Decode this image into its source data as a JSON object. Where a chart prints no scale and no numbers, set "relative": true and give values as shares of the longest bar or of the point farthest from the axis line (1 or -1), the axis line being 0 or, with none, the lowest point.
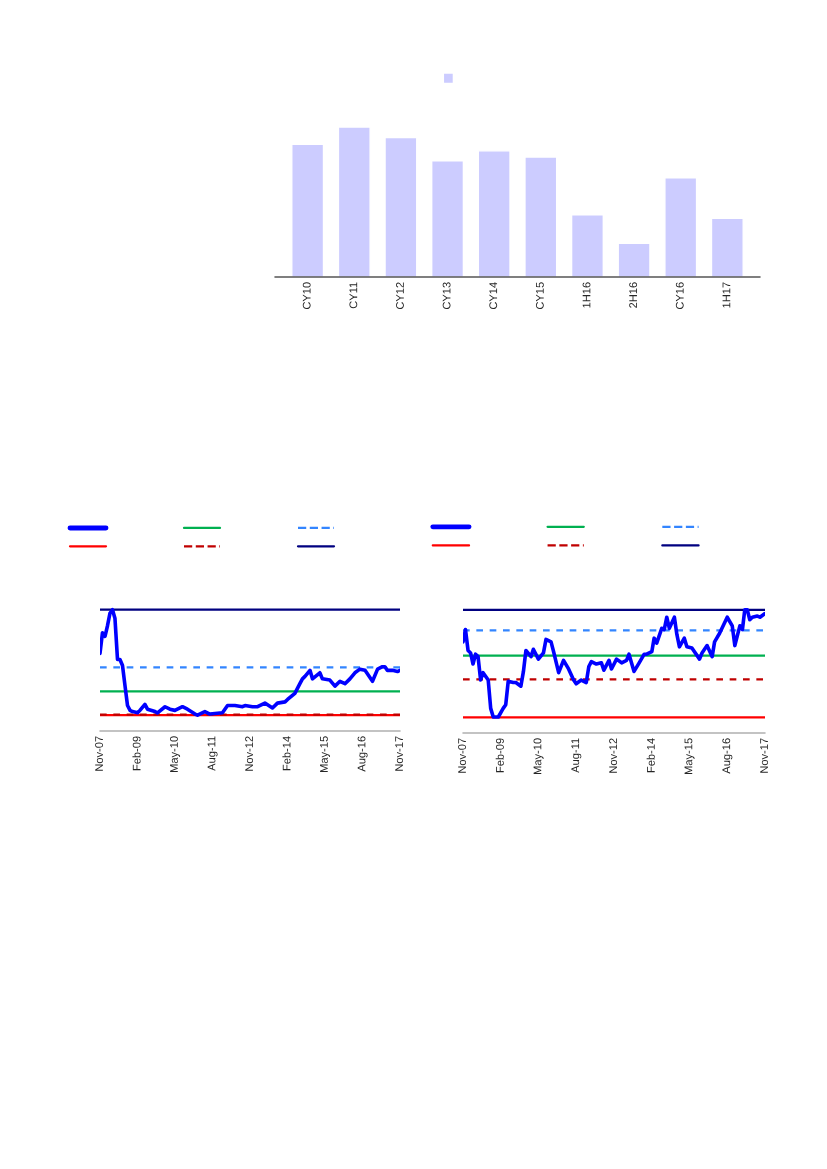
{
  "chart_data": [
    {
      "type": "bar",
      "relative": true,
      "categories": [
        "CY10",
        "CY11",
        "CY12",
        "CY13",
        "CY14",
        "CY15",
        "1H16",
        "2H16",
        "CY16",
        "1H17"
      ],
      "series": [
        {
          "color": "#ccccff",
          "values": [
            0.885,
            1,
            0.929,
            0.774,
            0.841,
            0.8,
            0.415,
            0.224,
            0.662,
            0.391
          ]
        }
      ]
    },
    {
      "type": "line",
      "relative": true,
      "xlim": [
        "2007-11",
        "2017-11"
      ],
      "xticks": [
        {
          "value": "2007-11",
          "label": "Nov-07"
        },
        {
          "value": "2009-02",
          "label": "Feb-09"
        },
        {
          "value": "2010-05",
          "label": "May-10"
        },
        {
          "value": "2011-08",
          "label": "Aug-11"
        },
        {
          "value": "2012-11",
          "label": "Nov-12"
        },
        {
          "value": "2014-02",
          "label": "Feb-14"
        },
        {
          "value": "2015-05",
          "label": "May-15"
        },
        {
          "value": "2016-08",
          "label": "Aug-16"
        },
        {
          "value": "2017-11",
          "label": "Nov-17"
        }
      ],
      "series": [
        {
          "color": "#0000ff",
          "x": [
            "2007-11",
            "2007-12",
            "2008-01",
            "2008-02",
            "2008-03",
            "2008-04",
            "2008-05",
            "2008-06",
            "2008-07",
            "2008-08",
            "2008-09",
            "2008-10",
            "2008-11",
            "2008-12",
            "2009-02",
            "2009-03",
            "2009-05",
            "2009-06",
            "2009-09",
            "2009-10",
            "2010-01",
            "2010-03",
            "2010-05",
            "2010-08",
            "2010-10",
            "2011-01",
            "2011-02",
            "2011-05",
            "2011-07",
            "2011-12",
            "2012-02",
            "2012-05",
            "2012-08",
            "2012-09",
            "2012-12",
            "2013-02",
            "2013-05",
            "2013-08",
            "2013-10",
            "2014-01",
            "2014-02",
            "2014-05",
            "2014-07",
            "2014-08",
            "2014-09",
            "2014-11",
            "2014-12",
            "2015-03",
            "2015-04",
            "2015-07",
            "2015-09",
            "2015-11",
            "2016-01",
            "2016-03",
            "2016-05",
            "2016-07",
            "2016-09",
            "2016-12",
            "2017-02",
            "2017-04",
            "2017-05",
            "2017-06",
            "2017-08",
            "2017-10",
            "2017-11"
          ],
          "values": [
            0.64,
            0.81,
            0.78,
            0.87,
            0.97,
            1.0,
            0.93,
            0.59,
            0.59,
            0.54,
            0.37,
            0.21,
            0.17,
            0.16,
            0.15,
            0.17,
            0.22,
            0.18,
            0.16,
            0.15,
            0.2,
            0.18,
            0.17,
            0.2,
            0.18,
            0.14,
            0.13,
            0.16,
            0.14,
            0.15,
            0.21,
            0.21,
            0.2,
            0.21,
            0.2,
            0.2,
            0.23,
            0.19,
            0.23,
            0.24,
            0.26,
            0.31,
            0.39,
            0.43,
            0.45,
            0.5,
            0.43,
            0.48,
            0.43,
            0.42,
            0.37,
            0.41,
            0.39,
            0.43,
            0.48,
            0.51,
            0.5,
            0.41,
            0.51,
            0.53,
            0.53,
            0.5,
            0.5,
            0.49,
            0.5
          ]
        }
      ],
      "ref_lines": [
        {
          "axis": "y",
          "value": 0.13,
          "color": "#ff0000",
          "line_style": "solid"
        },
        {
          "axis": "y",
          "value": 0.327,
          "color": "#00b050",
          "line_style": "solid"
        },
        {
          "axis": "y",
          "value": 0.525,
          "color": "#3385ff",
          "line_style": "dashed"
        },
        {
          "axis": "y",
          "value": 1.0,
          "color": "#000080",
          "line_style": "solid"
        },
        {
          "axis": "y",
          "value": 0.135,
          "color": "#c00000",
          "line_style": "dashed"
        }
      ]
    },
    {
      "type": "line",
      "relative": true,
      "xlim": [
        "2007-11",
        "2017-11"
      ],
      "xticks": [
        {
          "value": "2007-11",
          "label": "Nov-07"
        },
        {
          "value": "2009-02",
          "label": "Feb-09"
        },
        {
          "value": "2010-05",
          "label": "May-10"
        },
        {
          "value": "2011-08",
          "label": "Aug-11"
        },
        {
          "value": "2012-11",
          "label": "Nov-12"
        },
        {
          "value": "2014-02",
          "label": "Feb-14"
        },
        {
          "value": "2015-05",
          "label": "May-15"
        },
        {
          "value": "2016-08",
          "label": "Aug-16"
        },
        {
          "value": "2017-11",
          "label": "Nov-17"
        }
      ],
      "series": [
        {
          "color": "#0000ff",
          "x": [
            "2007-11",
            "2007-12",
            "2008-01",
            "2008-02",
            "2008-03",
            "2008-04",
            "2008-05",
            "2008-06",
            "2008-07",
            "2008-09",
            "2008-10",
            "2008-11",
            "2009-01",
            "2009-03",
            "2009-04",
            "2009-05",
            "2009-07",
            "2009-08",
            "2009-10",
            "2009-11",
            "2009-12",
            "2010-02",
            "2010-03",
            "2010-05",
            "2010-07",
            "2010-08",
            "2010-10",
            "2010-11",
            "2011-01",
            "2011-03",
            "2011-05",
            "2011-07",
            "2011-08",
            "2011-10",
            "2011-12",
            "2012-01",
            "2012-02",
            "2012-04",
            "2012-06",
            "2012-07",
            "2012-09",
            "2012-10",
            "2012-12",
            "2013-02",
            "2013-04",
            "2013-05",
            "2013-07",
            "2013-09",
            "2013-11",
            "2013-12",
            "2014-02",
            "2014-03",
            "2014-04",
            "2014-06",
            "2014-07",
            "2014-08",
            "2014-09",
            "2014-11",
            "2014-12",
            "2015-01",
            "2015-03",
            "2015-04",
            "2015-06",
            "2015-09",
            "2015-10",
            "2015-12",
            "2016-02",
            "2016-03",
            "2016-05",
            "2016-08",
            "2016-10",
            "2016-11",
            "2017-01",
            "2017-02",
            "2017-03",
            "2017-04",
            "2017-05",
            "2017-06",
            "2017-08",
            "2017-09",
            "2017-11"
          ],
          "values": [
            0.74,
            0.84,
            0.67,
            0.65,
            0.56,
            0.64,
            0.62,
            0.43,
            0.49,
            0.43,
            0.2,
            0.13,
            0.13,
            0.2,
            0.23,
            0.42,
            0.41,
            0.41,
            0.38,
            0.5,
            0.67,
            0.62,
            0.68,
            0.6,
            0.65,
            0.76,
            0.74,
            0.66,
            0.49,
            0.59,
            0.52,
            0.43,
            0.4,
            0.43,
            0.41,
            0.54,
            0.58,
            0.56,
            0.57,
            0.51,
            0.59,
            0.52,
            0.6,
            0.57,
            0.59,
            0.64,
            0.5,
            0.57,
            0.64,
            0.64,
            0.66,
            0.77,
            0.73,
            0.85,
            0.84,
            0.94,
            0.85,
            0.94,
            0.8,
            0.7,
            0.77,
            0.7,
            0.69,
            0.6,
            0.65,
            0.71,
            0.62,
            0.74,
            0.81,
            0.94,
            0.87,
            0.71,
            0.87,
            0.84,
            1.0,
            1.0,
            0.92,
            0.94,
            0.95,
            0.94,
            0.97
          ]
        }
      ],
      "ref_lines": [
        {
          "axis": "y",
          "value": 0.127,
          "color": "#ff0000",
          "line_style": "solid"
        },
        {
          "axis": "y",
          "value": 0.629,
          "color": "#00b050",
          "line_style": "solid"
        },
        {
          "axis": "y",
          "value": 0.833,
          "color": "#3385ff",
          "line_style": "dashed"
        },
        {
          "axis": "y",
          "value": 1.0,
          "color": "#000080",
          "line_style": "solid"
        },
        {
          "axis": "y",
          "value": 0.435,
          "color": "#c00000",
          "line_style": "dashed"
        }
      ]
    }
  ]
}
